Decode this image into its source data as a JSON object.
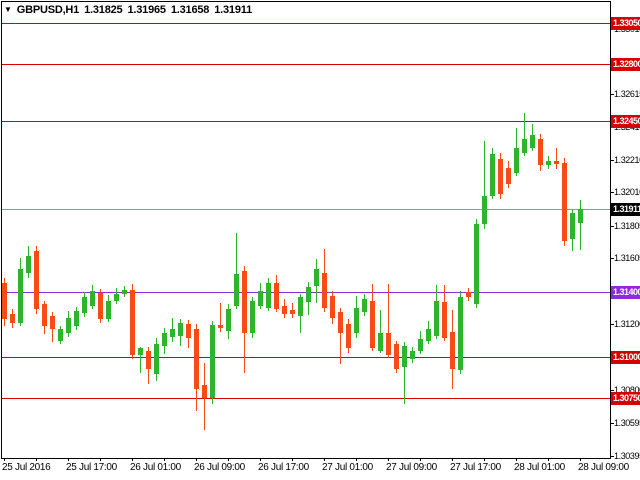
{
  "header": {
    "symbol": "GBPUSD,H1",
    "open": "1.31825",
    "high": "1.31965",
    "low": "1.31658",
    "close": "1.31911",
    "dropdown_icon": "triangle-down"
  },
  "colors": {
    "background": "#ffffff",
    "frame": "#000000",
    "up_candle": "#2eb52e",
    "down_candle": "#fb4a14",
    "level_red": "#d40000",
    "level_violet": "#8a2be2",
    "bid_line": "#8899a4",
    "bid_badge_bg": "#000000",
    "badge_text": "#ffffff",
    "axis_text": "#000000"
  },
  "chart_data": {
    "type": "candlestick",
    "title": "GBPUSD,H1 1.31825 1.31965 1.31658 1.31911",
    "symbol": "GBPUSD",
    "timeframe": "H1",
    "current_price": 1.31911,
    "grid": false,
    "legend_position": "none",
    "price_axis": {
      "side": "right",
      "labels": [
        "1.33015",
        "1.32810",
        "1.32615",
        "1.32410",
        "1.32210",
        "1.32010",
        "1.31805",
        "1.31605",
        "1.31405",
        "1.31200",
        "1.31000",
        "1.30800",
        "1.30595",
        "1.30395"
      ],
      "range_top": 1.3308,
      "range_bottom": 1.3038
    },
    "time_axis": {
      "labels": [
        "25 Jul 2016",
        "25 Jul 17:00",
        "26 Jul 01:00",
        "26 Jul 09:00",
        "26 Jul 17:00",
        "27 Jul 01:00",
        "27 Jul 09:00",
        "27 Jul 17:00",
        "28 Jul 01:00",
        "28 Jul 09:00"
      ],
      "hours_per_label": 8
    },
    "levels": [
      {
        "price": 1.3305,
        "label": "1.33050",
        "kind": "resistance",
        "color": "red"
      },
      {
        "price": 1.328,
        "label": "1.32800",
        "kind": "resistance",
        "color": "red"
      },
      {
        "price": 1.3245,
        "label": "1.32450",
        "kind": "resistance",
        "color": "red"
      },
      {
        "price": 1.31911,
        "label": "1.31911",
        "kind": "bid",
        "color": "bid"
      },
      {
        "price": 1.314,
        "label": "1.31400",
        "kind": "pivot",
        "color": "violet"
      },
      {
        "price": 1.31,
        "label": "1.31000",
        "kind": "support",
        "color": "red"
      },
      {
        "price": 1.3075,
        "label": "1.30750",
        "kind": "support",
        "color": "red"
      }
    ],
    "candles": [
      {
        "o": 1.31456,
        "h": 1.31487,
        "l": 1.31193,
        "c": 1.31236
      },
      {
        "o": 1.31266,
        "h": 1.31297,
        "l": 1.3118,
        "c": 1.31211
      },
      {
        "o": 1.31211,
        "h": 1.3161,
        "l": 1.31187,
        "c": 1.31542
      },
      {
        "o": 1.31518,
        "h": 1.31678,
        "l": 1.31487,
        "c": 1.31622
      },
      {
        "o": 1.31653,
        "h": 1.31678,
        "l": 1.31266,
        "c": 1.31297
      },
      {
        "o": 1.31328,
        "h": 1.31346,
        "l": 1.31138,
        "c": 1.31193
      },
      {
        "o": 1.31254,
        "h": 1.31273,
        "l": 1.31094,
        "c": 1.31174
      },
      {
        "o": 1.311,
        "h": 1.31193,
        "l": 1.31082,
        "c": 1.31174
      },
      {
        "o": 1.3115,
        "h": 1.31279,
        "l": 1.31125,
        "c": 1.31242
      },
      {
        "o": 1.31193,
        "h": 1.31309,
        "l": 1.31168,
        "c": 1.31285
      },
      {
        "o": 1.31267,
        "h": 1.31401,
        "l": 1.31248,
        "c": 1.31365
      },
      {
        "o": 1.31315,
        "h": 1.31444,
        "l": 1.31297,
        "c": 1.31407
      },
      {
        "o": 1.31395,
        "h": 1.31419,
        "l": 1.31211,
        "c": 1.31236
      },
      {
        "o": 1.31236,
        "h": 1.31383,
        "l": 1.31217,
        "c": 1.31346
      },
      {
        "o": 1.31346,
        "h": 1.31426,
        "l": 1.31328,
        "c": 1.31389
      },
      {
        "o": 1.31389,
        "h": 1.31438,
        "l": 1.31365,
        "c": 1.31413
      },
      {
        "o": 1.31413,
        "h": 1.3145,
        "l": 1.3099,
        "c": 1.31009
      },
      {
        "o": 1.31009,
        "h": 1.31064,
        "l": 1.30904,
        "c": 1.31052
      },
      {
        "o": 1.31039,
        "h": 1.31064,
        "l": 1.30837,
        "c": 1.30929
      },
      {
        "o": 1.30898,
        "h": 1.31119,
        "l": 1.30855,
        "c": 1.31082
      },
      {
        "o": 1.3107,
        "h": 1.3118,
        "l": 1.31021,
        "c": 1.31144
      },
      {
        "o": 1.31125,
        "h": 1.31242,
        "l": 1.31094,
        "c": 1.31174
      },
      {
        "o": 1.31131,
        "h": 1.31236,
        "l": 1.3107,
        "c": 1.31211
      },
      {
        "o": 1.31205,
        "h": 1.31229,
        "l": 1.31052,
        "c": 1.31119
      },
      {
        "o": 1.31174,
        "h": 1.31205,
        "l": 1.30671,
        "c": 1.30806
      },
      {
        "o": 1.30825,
        "h": 1.3096,
        "l": 1.30549,
        "c": 1.30751
      },
      {
        "o": 1.30751,
        "h": 1.31223,
        "l": 1.30714,
        "c": 1.31199
      },
      {
        "o": 1.31199,
        "h": 1.31334,
        "l": 1.31156,
        "c": 1.3118
      },
      {
        "o": 1.31162,
        "h": 1.31328,
        "l": 1.31113,
        "c": 1.31297
      },
      {
        "o": 1.31315,
        "h": 1.31763,
        "l": 1.31297,
        "c": 1.31512
      },
      {
        "o": 1.3153,
        "h": 1.31561,
        "l": 1.30904,
        "c": 1.3115
      },
      {
        "o": 1.3115,
        "h": 1.31365,
        "l": 1.31119,
        "c": 1.31346
      },
      {
        "o": 1.31315,
        "h": 1.31456,
        "l": 1.31297,
        "c": 1.31407
      },
      {
        "o": 1.31303,
        "h": 1.31487,
        "l": 1.31285,
        "c": 1.31456
      },
      {
        "o": 1.31456,
        "h": 1.315,
        "l": 1.31273,
        "c": 1.31297
      },
      {
        "o": 1.31315,
        "h": 1.31358,
        "l": 1.31242,
        "c": 1.31266
      },
      {
        "o": 1.31291,
        "h": 1.31334,
        "l": 1.31242,
        "c": 1.31266
      },
      {
        "o": 1.31254,
        "h": 1.31389,
        "l": 1.31144,
        "c": 1.31365
      },
      {
        "o": 1.3134,
        "h": 1.31462,
        "l": 1.3126,
        "c": 1.31431
      },
      {
        "o": 1.31438,
        "h": 1.31604,
        "l": 1.31334,
        "c": 1.31542
      },
      {
        "o": 1.31518,
        "h": 1.31665,
        "l": 1.31273,
        "c": 1.31303
      },
      {
        "o": 1.31377,
        "h": 1.31407,
        "l": 1.31205,
        "c": 1.31242
      },
      {
        "o": 1.31273,
        "h": 1.31303,
        "l": 1.30959,
        "c": 1.31144
      },
      {
        "o": 1.31205,
        "h": 1.31236,
        "l": 1.31027,
        "c": 1.31058
      },
      {
        "o": 1.31144,
        "h": 1.31377,
        "l": 1.31119,
        "c": 1.31303
      },
      {
        "o": 1.31273,
        "h": 1.31389,
        "l": 1.31254,
        "c": 1.31358
      },
      {
        "o": 1.31346,
        "h": 1.3145,
        "l": 1.31039,
        "c": 1.31052
      },
      {
        "o": 1.31039,
        "h": 1.31291,
        "l": 1.31027,
        "c": 1.31144
      },
      {
        "o": 1.3115,
        "h": 1.3145,
        "l": 1.30996,
        "c": 1.31009
      },
      {
        "o": 1.31082,
        "h": 1.311,
        "l": 1.30904,
        "c": 1.30929
      },
      {
        "o": 1.30941,
        "h": 1.31094,
        "l": 1.30714,
        "c": 1.3107
      },
      {
        "o": 1.3099,
        "h": 1.31064,
        "l": 1.30966,
        "c": 1.31039
      },
      {
        "o": 1.31039,
        "h": 1.31162,
        "l": 1.31021,
        "c": 1.31113
      },
      {
        "o": 1.311,
        "h": 1.31223,
        "l": 1.31082,
        "c": 1.31174
      },
      {
        "o": 1.31131,
        "h": 1.31444,
        "l": 1.31113,
        "c": 1.31346
      },
      {
        "o": 1.3134,
        "h": 1.31444,
        "l": 1.311,
        "c": 1.31119
      },
      {
        "o": 1.31156,
        "h": 1.31291,
        "l": 1.30806,
        "c": 1.30929
      },
      {
        "o": 1.30917,
        "h": 1.31407,
        "l": 1.30898,
        "c": 1.31371
      },
      {
        "o": 1.31401,
        "h": 1.31426,
        "l": 1.31346,
        "c": 1.31371
      },
      {
        "o": 1.31328,
        "h": 1.31849,
        "l": 1.31303,
        "c": 1.31818
      },
      {
        "o": 1.31818,
        "h": 1.32328,
        "l": 1.31788,
        "c": 1.3199
      },
      {
        "o": 1.3199,
        "h": 1.32285,
        "l": 1.31972,
        "c": 1.32248
      },
      {
        "o": 1.32217,
        "h": 1.32254,
        "l": 1.31972,
        "c": 1.32003
      },
      {
        "o": 1.32162,
        "h": 1.32205,
        "l": 1.32039,
        "c": 1.32064
      },
      {
        "o": 1.32131,
        "h": 1.32402,
        "l": 1.32113,
        "c": 1.32285
      },
      {
        "o": 1.32254,
        "h": 1.32494,
        "l": 1.32236,
        "c": 1.3234
      },
      {
        "o": 1.32285,
        "h": 1.32432,
        "l": 1.32266,
        "c": 1.32359
      },
      {
        "o": 1.3234,
        "h": 1.32371,
        "l": 1.32144,
        "c": 1.32175
      },
      {
        "o": 1.32175,
        "h": 1.32236,
        "l": 1.32156,
        "c": 1.32205
      },
      {
        "o": 1.32205,
        "h": 1.32285,
        "l": 1.32156,
        "c": 1.32187
      },
      {
        "o": 1.32193,
        "h": 1.32223,
        "l": 1.31683,
        "c": 1.31714
      },
      {
        "o": 1.31726,
        "h": 1.31911,
        "l": 1.31653,
        "c": 1.31886
      },
      {
        "o": 1.31825,
        "h": 1.31965,
        "l": 1.31658,
        "c": 1.31911
      }
    ]
  }
}
